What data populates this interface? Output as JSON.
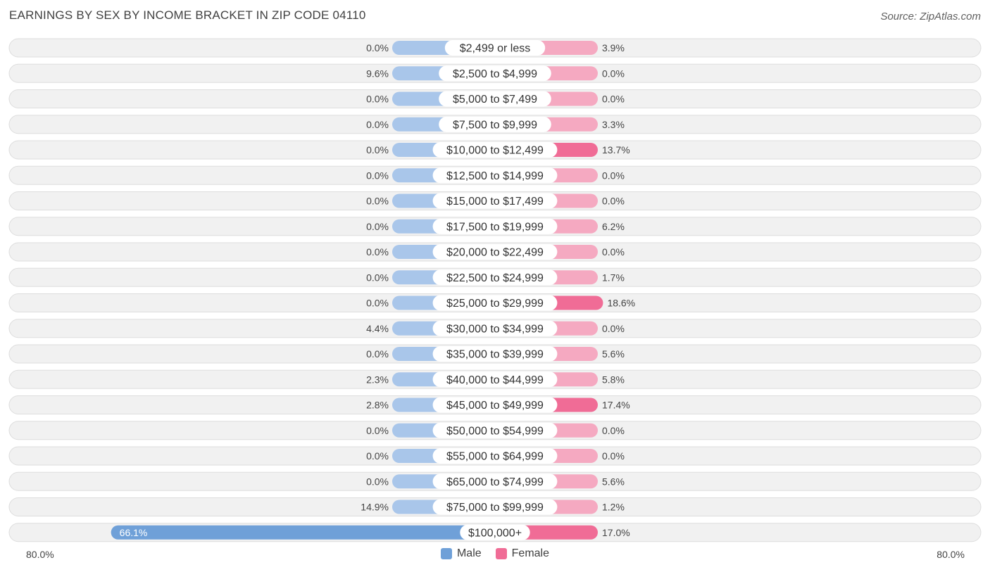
{
  "header": {
    "title": "EARNINGS BY SEX BY INCOME BRACKET IN ZIP CODE 04110",
    "source": "Source: ZipAtlas.com"
  },
  "legend": {
    "male_label": "Male",
    "female_label": "Female"
  },
  "axis": {
    "left_label": "80.0%",
    "right_label": "80.0%"
  },
  "colors": {
    "male_light": "#a9c6ea",
    "male_strong": "#6fa0d8",
    "female_light": "#f5a9c1",
    "female_strong": "#f06c96",
    "row_bg": "#f1f1f1",
    "row_border": "#dddddd"
  },
  "chart_data": {
    "type": "bar",
    "orientation": "horizontal-diverging",
    "title": "EARNINGS BY SEX BY INCOME BRACKET IN ZIP CODE 04110",
    "xlim": [
      -80,
      80
    ],
    "unit": "%",
    "categories": [
      "$2,499 or less",
      "$2,500 to $4,999",
      "$5,000 to $7,499",
      "$7,500 to $9,999",
      "$10,000 to $12,499",
      "$12,500 to $14,999",
      "$15,000 to $17,499",
      "$17,500 to $19,999",
      "$20,000 to $22,499",
      "$22,500 to $24,999",
      "$25,000 to $29,999",
      "$30,000 to $34,999",
      "$35,000 to $39,999",
      "$40,000 to $44,999",
      "$45,000 to $49,999",
      "$50,000 to $54,999",
      "$55,000 to $64,999",
      "$65,000 to $74,999",
      "$75,000 to $99,999",
      "$100,000+"
    ],
    "series": [
      {
        "name": "Male",
        "values": [
          0.0,
          9.6,
          0.0,
          0.0,
          0.0,
          0.0,
          0.0,
          0.0,
          0.0,
          0.0,
          0.0,
          4.4,
          0.0,
          2.3,
          2.8,
          0.0,
          0.0,
          0.0,
          14.9,
          66.1
        ],
        "labels": [
          "0.0%",
          "9.6%",
          "0.0%",
          "0.0%",
          "0.0%",
          "0.0%",
          "0.0%",
          "0.0%",
          "0.0%",
          "0.0%",
          "0.0%",
          "4.4%",
          "0.0%",
          "2.3%",
          "2.8%",
          "0.0%",
          "0.0%",
          "0.0%",
          "14.9%",
          "66.1%"
        ]
      },
      {
        "name": "Female",
        "values": [
          3.9,
          0.0,
          0.0,
          3.3,
          13.7,
          0.0,
          0.0,
          6.2,
          0.0,
          1.7,
          18.6,
          0.0,
          5.6,
          5.8,
          17.4,
          0.0,
          0.0,
          5.6,
          1.2,
          17.0
        ],
        "labels": [
          "3.9%",
          "0.0%",
          "0.0%",
          "3.3%",
          "13.7%",
          "0.0%",
          "0.0%",
          "6.2%",
          "0.0%",
          "1.7%",
          "18.6%",
          "0.0%",
          "5.6%",
          "5.8%",
          "17.4%",
          "0.0%",
          "0.0%",
          "5.6%",
          "1.2%",
          "17.0%"
        ]
      }
    ]
  }
}
